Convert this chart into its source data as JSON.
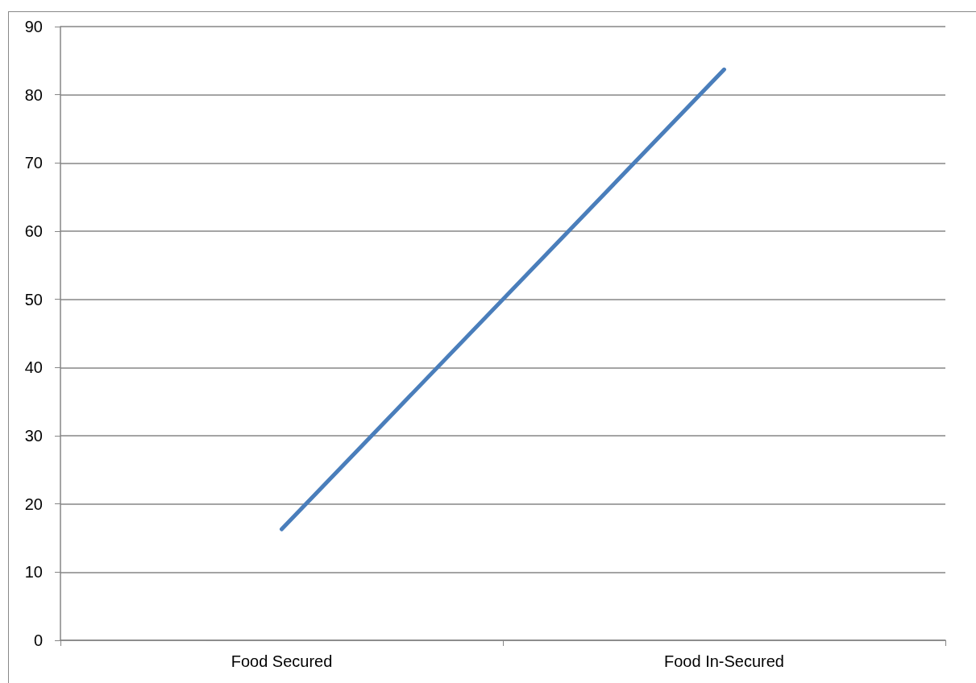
{
  "chart_data": {
    "type": "line",
    "categories": [
      "Food Secured",
      "Food In-Secured"
    ],
    "series": [
      {
        "color": "#4a7ebb",
        "values": [
          16.3,
          83.7
        ]
      }
    ],
    "ylim": [
      0,
      90
    ],
    "yticks": [
      0,
      10,
      20,
      30,
      40,
      50,
      60,
      70,
      80,
      90
    ],
    "grid": "y",
    "marker": "none",
    "line_style": "solid"
  }
}
